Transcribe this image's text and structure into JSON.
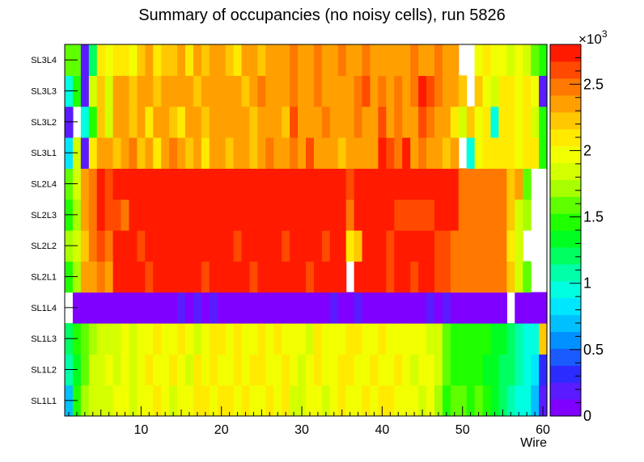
{
  "chart_data": {
    "type": "heatmap",
    "title": "Summary of occupancies (no noisy cells), run 5826",
    "xlabel": "Wire",
    "ylabel": "",
    "x_range": [
      0.5,
      60.5
    ],
    "x_ticks": [
      10,
      20,
      30,
      40,
      50,
      60
    ],
    "x_tick_labels": [
      "10",
      "20",
      "30",
      "40",
      "50",
      "60"
    ],
    "layers": [
      "SL1L1",
      "SL1L2",
      "SL1L3",
      "SL1L4",
      "SL2L1",
      "SL2L2",
      "SL2L3",
      "SL2L4",
      "SL3L1",
      "SL3L2",
      "SL3L3",
      "SL3L4"
    ],
    "color_scale": {
      "min": 0,
      "max": 2800,
      "exponent_label": "×10",
      "exponent_power": "3",
      "ticks": [
        0,
        500,
        1000,
        1500,
        2000,
        2500
      ],
      "tick_labels": [
        "0",
        "0.5",
        "1",
        "1.5",
        "2",
        "2.5"
      ],
      "palette": [
        "#7f00ff",
        "#5a1bff",
        "#2b2bff",
        "#1a5bff",
        "#0090ff",
        "#00c0ff",
        "#00e6ff",
        "#00ffe0",
        "#00ffa8",
        "#00ff60",
        "#00ff20",
        "#20ff00",
        "#60ff00",
        "#a8ff00",
        "#d4ff00",
        "#f2ff00",
        "#ffea00",
        "#ffc800",
        "#ffa000",
        "#ff7800",
        "#ff4a00",
        "#ff1a00"
      ]
    },
    "values": [
      [
        700,
        1500,
        1700,
        1800,
        1900,
        1800,
        1950,
        2000,
        1800,
        2000,
        1950,
        2100,
        2000,
        1900,
        2000,
        1950,
        2100,
        2050,
        2000,
        2150,
        2100,
        2000,
        2050,
        1950,
        2000,
        2100,
        2000,
        2050,
        1900,
        1850,
        1950,
        2000,
        1900,
        1950,
        2050,
        2000,
        1950,
        2050,
        2000,
        2100,
        2050,
        2000,
        1950,
        2000,
        1900,
        1950,
        1700,
        1500,
        1550,
        1600,
        1500,
        1550,
        1450,
        1350,
        1200,
        1100,
        1000,
        900,
        700,
        200
      ],
      [
        1100,
        1300,
        1650,
        1800,
        1850,
        1950,
        1900,
        2000,
        1900,
        2000,
        2050,
        1950,
        2000,
        2100,
        2000,
        1900,
        2050,
        2000,
        2100,
        2000,
        1950,
        2050,
        2000,
        2100,
        2050,
        2000,
        1950,
        2050,
        2000,
        1900,
        2000,
        2050,
        1950,
        2000,
        2100,
        2050,
        2000,
        1950,
        2050,
        2000,
        1950,
        2050,
        2000,
        1900,
        2000,
        1950,
        1800,
        1650,
        1500,
        1450,
        1400,
        1400,
        1350,
        1300,
        1250,
        1150,
        1050,
        950,
        800,
        300
      ],
      [
        1200,
        1400,
        1600,
        1750,
        1800,
        1900,
        1850,
        1950,
        1900,
        2000,
        1950,
        2050,
        2000,
        1950,
        2050,
        2000,
        1900,
        2000,
        2100,
        2050,
        2000,
        2050,
        1950,
        2000,
        2050,
        2000,
        2100,
        1950,
        2000,
        2000,
        1900,
        2050,
        2000,
        1950,
        2000,
        2050,
        2100,
        2000,
        1950,
        2050,
        2000,
        1950,
        2000,
        2000,
        1950,
        1900,
        1850,
        1600,
        1500,
        1500,
        1450,
        1400,
        1400,
        1350,
        1300,
        1200,
        1100,
        1000,
        900,
        2200
      ],
      [
        null,
        100,
        100,
        100,
        100,
        100,
        100,
        100,
        100,
        100,
        100,
        100,
        100,
        100,
        200,
        100,
        200,
        100,
        200,
        100,
        100,
        100,
        100,
        100,
        100,
        100,
        100,
        100,
        100,
        100,
        100,
        100,
        100,
        200,
        100,
        100,
        200,
        100,
        100,
        100,
        100,
        100,
        100,
        100,
        100,
        200,
        100,
        200,
        100,
        100,
        100,
        100,
        100,
        100,
        100,
        null,
        100,
        100,
        100,
        100
      ],
      [
        1500,
        1700,
        2300,
        2400,
        2500,
        2400,
        2700,
        2700,
        2700,
        2700,
        2600,
        2700,
        2800,
        2700,
        2700,
        2800,
        2700,
        2600,
        2700,
        2800,
        2700,
        2700,
        2800,
        2600,
        2800,
        2700,
        2800,
        2700,
        2800,
        2700,
        2600,
        2800,
        2700,
        2700,
        2800,
        null,
        2700,
        2800,
        2800,
        2700,
        2600,
        2700,
        2800,
        2600,
        2700,
        2700,
        2600,
        2600,
        2500,
        2500,
        2500,
        2500,
        2500,
        2500,
        2500,
        2200,
        1800,
        1600,
        null,
        null
      ],
      [
        1700,
        1800,
        2200,
        2500,
        2600,
        2500,
        2700,
        2700,
        2700,
        2600,
        2700,
        2800,
        2700,
        2800,
        2700,
        2700,
        2800,
        2700,
        2700,
        2800,
        2700,
        2600,
        2700,
        2800,
        2700,
        2700,
        2800,
        2600,
        2700,
        2700,
        2800,
        2700,
        2600,
        2700,
        2800,
        2100,
        2200,
        2800,
        2700,
        2800,
        2600,
        2700,
        2700,
        2700,
        2800,
        2700,
        2600,
        2600,
        2500,
        2500,
        2500,
        2500,
        2500,
        2500,
        2500,
        2100,
        1900,
        null,
        null,
        null
      ],
      [
        1500,
        1700,
        2300,
        2500,
        2700,
        2600,
        2600,
        2500,
        2700,
        2800,
        2800,
        2800,
        2800,
        2800,
        2800,
        2700,
        2800,
        2800,
        2800,
        2800,
        2800,
        2800,
        2800,
        2800,
        2800,
        2800,
        2800,
        2800,
        2800,
        2800,
        2800,
        2800,
        2800,
        2800,
        2800,
        2500,
        2700,
        2800,
        2800,
        2800,
        2800,
        2600,
        2600,
        2600,
        2600,
        2600,
        2700,
        2700,
        2700,
        2500,
        2500,
        2500,
        2500,
        2500,
        2500,
        2200,
        1900,
        1700,
        null,
        null
      ],
      [
        1600,
        1800,
        2300,
        2500,
        2700,
        2600,
        2700,
        2700,
        2700,
        2800,
        2800,
        2800,
        2700,
        2800,
        2800,
        2800,
        2700,
        2800,
        2800,
        2800,
        2800,
        2800,
        2800,
        2700,
        2800,
        2800,
        2800,
        2800,
        2800,
        2700,
        2800,
        2800,
        2800,
        2800,
        2800,
        2600,
        2800,
        2800,
        2800,
        2800,
        2800,
        2800,
        2800,
        2800,
        2800,
        2800,
        2800,
        2800,
        2800,
        2500,
        2500,
        2500,
        2500,
        2500,
        2500,
        2200,
        2400,
        1600,
        null,
        null
      ],
      [
        800,
        1900,
        200,
        2100,
        2300,
        2300,
        2200,
        2400,
        2500,
        2200,
        2300,
        2100,
        2300,
        2500,
        2300,
        2200,
        2300,
        2100,
        2400,
        2300,
        2200,
        2400,
        2300,
        2200,
        2300,
        2500,
        2300,
        2400,
        2500,
        2400,
        2600,
        2300,
        2400,
        2300,
        2200,
        2400,
        2300,
        2400,
        2300,
        2700,
        2600,
        2500,
        2700,
        2400,
        2500,
        2300,
        2400,
        2200,
        2300,
        null,
        1000,
        2000,
        2100,
        2100,
        2100,
        2100,
        2000,
        2100,
        2100,
        1500
      ],
      [
        200,
        null,
        1000,
        1500,
        2200,
        1900,
        2300,
        2300,
        2200,
        2300,
        2100,
        2300,
        2300,
        2200,
        2100,
        2300,
        2400,
        2200,
        2300,
        2400,
        2300,
        2400,
        2300,
        2200,
        2400,
        2300,
        2300,
        2200,
        2600,
        2300,
        2400,
        2300,
        2500,
        2300,
        2300,
        2400,
        2500,
        2400,
        2300,
        2600,
        2400,
        2500,
        2300,
        2400,
        2600,
        2500,
        2300,
        2400,
        2100,
        1800,
        2200,
        2000,
        2100,
        1000,
        2100,
        2100,
        2000,
        2100,
        1800,
        1500
      ],
      [
        1000,
        1500,
        200,
        1900,
        2200,
        1900,
        2300,
        2300,
        2200,
        2400,
        2300,
        2200,
        2300,
        2400,
        2400,
        2300,
        2200,
        2300,
        2400,
        2300,
        2400,
        2300,
        2200,
        2400,
        2500,
        2400,
        2300,
        2400,
        2500,
        2300,
        2400,
        2500,
        2400,
        2300,
        2400,
        2300,
        2500,
        2600,
        2300,
        2500,
        2400,
        2500,
        2300,
        2500,
        2700,
        2600,
        2500,
        2300,
        2300,
        2200,
        null,
        2200,
        2000,
        1800,
        2100,
        2100,
        2000,
        2100,
        2000,
        200
      ],
      [
        1600,
        1600,
        200,
        1200,
        2100,
        2000,
        2100,
        2100,
        2000,
        2200,
        2400,
        2100,
        2200,
        2200,
        2300,
        2100,
        2300,
        2200,
        2400,
        2300,
        2200,
        2100,
        2300,
        2400,
        2200,
        2300,
        2400,
        2300,
        2500,
        2300,
        2400,
        2500,
        2400,
        2300,
        2500,
        2400,
        2300,
        2500,
        2400,
        2300,
        2400,
        2300,
        2400,
        2500,
        2400,
        2300,
        2500,
        2400,
        2300,
        null,
        null,
        2000,
        2100,
        2000,
        2000,
        1900,
        2000,
        1800,
        1600,
        1400
      ]
    ]
  }
}
